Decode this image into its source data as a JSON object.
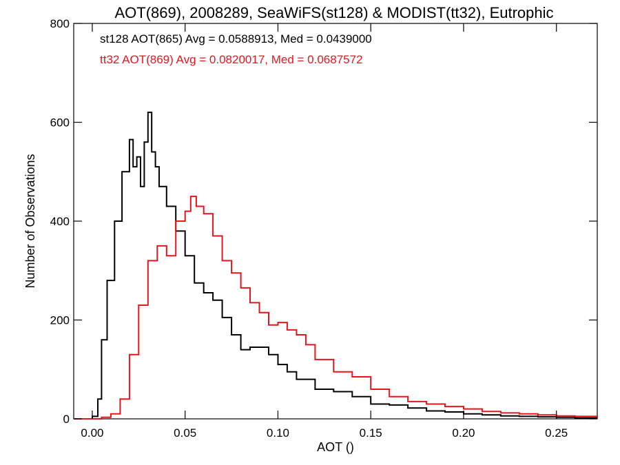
{
  "chart_data": {
    "type": "line",
    "title": "AOT(869), 2008289, SeaWiFS(st128) & MODIST(tt32), Eutrophic",
    "xlabel": "AOT ()",
    "ylabel": "Number of Observations",
    "xlim": [
      -0.01,
      0.272
    ],
    "ylim": [
      0,
      800
    ],
    "x_ticks": [
      0.0,
      0.05,
      0.1,
      0.15,
      0.2,
      0.25
    ],
    "x_tick_labels": [
      "0.00",
      "0.05",
      "0.10",
      "0.15",
      "0.20",
      "0.25"
    ],
    "y_ticks": [
      0,
      200,
      400,
      600,
      800
    ],
    "y_tick_labels": [
      "0",
      "200",
      "400",
      "600",
      "800"
    ],
    "grid": false,
    "annotations": [
      {
        "text": "st128 AOT(865) Avg = 0.0588913, Med = 0.0439000",
        "color": "#000000"
      },
      {
        "text": "tt32 AOT(869) Avg = 0.0820017, Med = 0.0687572",
        "color": "#e8141c"
      }
    ],
    "series": [
      {
        "color": "#000000",
        "x": [
          -0.01,
          0.0,
          0.003,
          0.005,
          0.008,
          0.012,
          0.016,
          0.02,
          0.022,
          0.024,
          0.026,
          0.028,
          0.03,
          0.032,
          0.034,
          0.036,
          0.04,
          0.045,
          0.05,
          0.055,
          0.06,
          0.065,
          0.07,
          0.075,
          0.08,
          0.085,
          0.09,
          0.095,
          0.1,
          0.105,
          0.11,
          0.12,
          0.13,
          0.14,
          0.15,
          0.16,
          0.17,
          0.18,
          0.19,
          0.2,
          0.21,
          0.22,
          0.23,
          0.24,
          0.25,
          0.26,
          0.272
        ],
        "y": [
          0,
          5,
          40,
          160,
          280,
          400,
          500,
          565,
          510,
          530,
          470,
          560,
          620,
          540,
          510,
          470,
          430,
          380,
          330,
          275,
          255,
          240,
          205,
          170,
          140,
          145,
          145,
          130,
          110,
          95,
          80,
          60,
          55,
          45,
          30,
          28,
          22,
          16,
          14,
          10,
          8,
          6,
          5,
          4,
          3,
          2,
          2
        ]
      },
      {
        "color": "#e8141c",
        "x": [
          -0.01,
          0.005,
          0.01,
          0.015,
          0.02,
          0.025,
          0.03,
          0.035,
          0.04,
          0.045,
          0.05,
          0.053,
          0.056,
          0.06,
          0.065,
          0.07,
          0.075,
          0.08,
          0.085,
          0.09,
          0.095,
          0.1,
          0.105,
          0.11,
          0.115,
          0.12,
          0.13,
          0.14,
          0.15,
          0.16,
          0.17,
          0.18,
          0.19,
          0.2,
          0.21,
          0.22,
          0.23,
          0.24,
          0.25,
          0.26,
          0.272
        ],
        "y": [
          0,
          3,
          10,
          40,
          130,
          230,
          320,
          350,
          330,
          400,
          420,
          450,
          430,
          415,
          370,
          320,
          295,
          265,
          235,
          215,
          190,
          195,
          180,
          170,
          150,
          120,
          95,
          85,
          60,
          45,
          35,
          30,
          25,
          20,
          15,
          12,
          10,
          8,
          6,
          5,
          3
        ]
      }
    ]
  }
}
